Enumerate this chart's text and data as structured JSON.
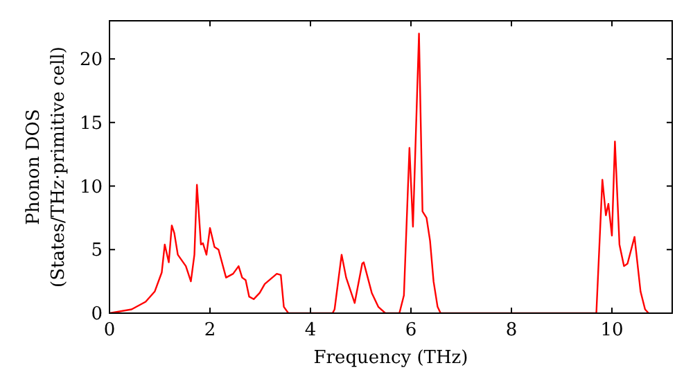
{
  "chart_data": {
    "type": "line",
    "xlabel": "Frequency (THz)",
    "ylabel": "Phonon DOS\n(States/THz·primitive cell)",
    "xlim": [
      0,
      11.2
    ],
    "ylim": [
      0,
      23
    ],
    "xticks": [
      0,
      2,
      4,
      6,
      8,
      10
    ],
    "yticks": [
      0,
      5,
      10,
      15,
      20
    ],
    "grid": false,
    "marker": "none",
    "line_style": "solid",
    "series": [
      {
        "color": "#ff0000",
        "x": [
          0,
          0.44,
          0.72,
          0.9,
          1.04,
          1.1,
          1.18,
          1.24,
          1.29,
          1.36,
          1.52,
          1.62,
          1.69,
          1.74,
          1.82,
          1.86,
          1.93,
          2.0,
          2.09,
          2.17,
          2.32,
          2.46,
          2.57,
          2.64,
          2.71,
          2.78,
          2.87,
          2.99,
          3.09,
          3.33,
          3.41,
          3.47,
          3.56,
          4.44,
          4.48,
          4.62,
          4.71,
          4.88,
          5.03,
          5.06,
          5.22,
          5.35,
          5.49,
          5.77,
          5.86,
          5.97,
          6.04,
          6.16,
          6.23,
          6.31,
          6.38,
          6.45,
          6.53,
          6.59,
          9.69,
          9.81,
          9.88,
          9.93,
          10.0,
          10.06,
          10.15,
          10.24,
          10.31,
          10.45,
          10.57,
          10.66,
          10.73
        ],
        "values": [
          0,
          0.3,
          0.9,
          1.7,
          3.2,
          5.4,
          4.0,
          6.9,
          6.3,
          4.6,
          3.7,
          2.5,
          4.6,
          10.1,
          5.4,
          5.5,
          4.6,
          6.7,
          5.2,
          5.0,
          2.8,
          3.1,
          3.7,
          2.8,
          2.6,
          1.3,
          1.1,
          1.6,
          2.3,
          3.1,
          3.0,
          0.5,
          0,
          0,
          0.3,
          4.6,
          2.8,
          0.8,
          3.9,
          4.0,
          1.6,
          0.5,
          0,
          0,
          1.4,
          13.0,
          6.8,
          22.0,
          8.0,
          7.5,
          5.7,
          2.5,
          0.5,
          0,
          0,
          10.5,
          7.7,
          8.6,
          6.1,
          13.5,
          5.4,
          3.7,
          3.9,
          6.0,
          1.7,
          0.3,
          0
        ]
      }
    ]
  }
}
